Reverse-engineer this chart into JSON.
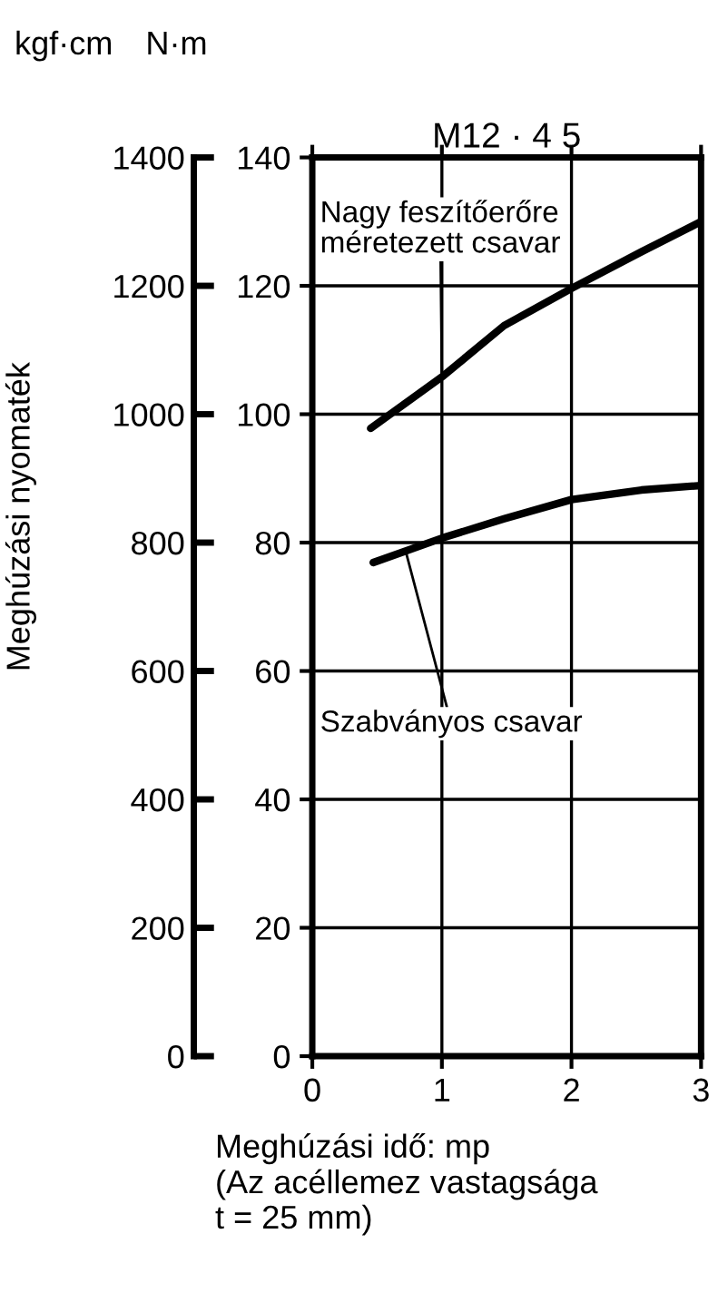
{
  "chart_data": {
    "type": "line",
    "title": "M12 · 4 5",
    "xlabel": "Meghúzási idő: mp\n(Az acéllemez vastagsága\nt = 25 mm)",
    "ylabel": "Meghúzási nyomaték",
    "annotations": [
      "kgf·cm",
      "N·m",
      {
        "text": "Nagy feszítőerőre\nméretezett csavar",
        "x": 1.0,
        "y": 1058
      },
      {
        "text": "Szabványos csavar",
        "x": 0.72,
        "y": 787
      }
    ],
    "series": [
      {
        "color": "#000000",
        "axis": "y2",
        "x": [
          0.45,
          1.0,
          1.48,
          2.0,
          2.54,
          3.0
        ],
        "values": [
          97.8,
          105.8,
          113.8,
          119.6,
          125.3,
          130.0
        ]
      },
      {
        "color": "#000000",
        "axis": "y2",
        "x": [
          0.47,
          1.0,
          1.48,
          2.0,
          2.54,
          3.0
        ],
        "values": [
          76.9,
          80.7,
          83.7,
          86.7,
          88.2,
          88.9
        ]
      }
    ],
    "xlim": [
      0,
      3
    ],
    "xticks": [
      0,
      1,
      2,
      3
    ],
    "y2lim": [
      0,
      140
    ],
    "y2ticks": [
      0,
      20,
      40,
      60,
      80,
      100,
      120,
      140
    ],
    "ylim": [
      0,
      1400
    ],
    "yticks": [
      0,
      200,
      400,
      600,
      800,
      1000,
      1200,
      1400
    ],
    "grid": true,
    "line_style": "solid",
    "marker": "none",
    "legend": false
  }
}
